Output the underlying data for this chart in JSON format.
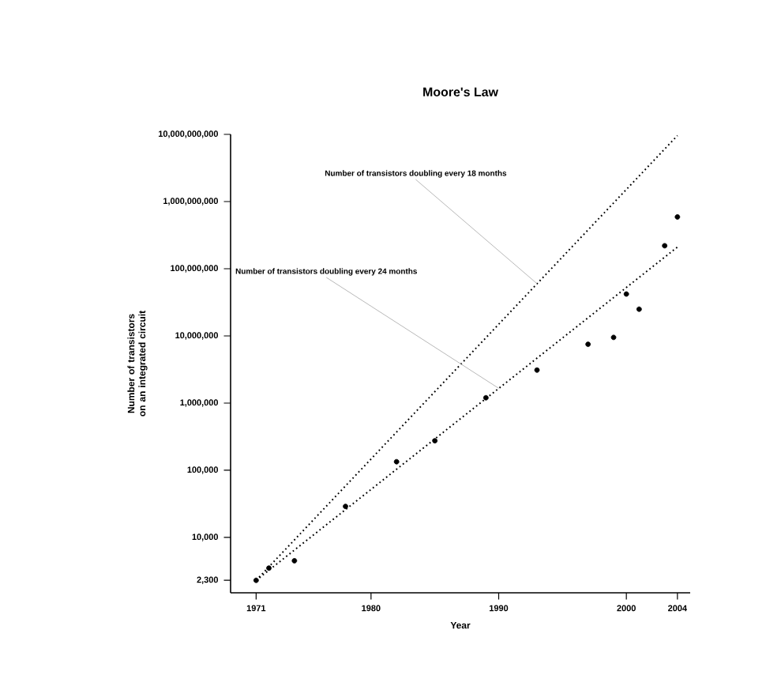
{
  "chart_data": {
    "type": "scatter",
    "title": "Moore's Law",
    "xlabel": "Year",
    "ylabel": "Number of transistors on an integrated circuit",
    "log": "y",
    "grid": false,
    "xlim": [
      1969,
      2005
    ],
    "xticks": [
      1971,
      1980,
      1990,
      2000,
      2004
    ],
    "ylim": [
      1500,
      10000000000
    ],
    "yticks": [
      {
        "value": 2300,
        "label": "2,300"
      },
      {
        "value": 10000,
        "label": "10,000"
      },
      {
        "value": 100000,
        "label": "100,000"
      },
      {
        "value": 1000000,
        "label": "1,000,000"
      },
      {
        "value": 10000000,
        "label": "10,000,000"
      },
      {
        "value": 100000000,
        "label": "100,000,000"
      },
      {
        "value": 1000000000,
        "label": "1,000,000,000"
      },
      {
        "value": 10000000000,
        "label": "10,000,000,000"
      }
    ],
    "series": [
      {
        "color": "#000000",
        "marker": "circle",
        "x": [
          1971,
          1972,
          1974,
          1978,
          1982,
          1985,
          1989,
          1993,
          1997,
          1999,
          2000,
          2001,
          2003,
          2004
        ],
        "values": [
          2300,
          3500,
          4500,
          29000,
          134000,
          275000,
          1200000,
          3100000,
          7500000,
          9500000,
          42000000,
          25000000,
          220000000,
          590000000
        ]
      },
      {
        "type": "line",
        "color": "#000000",
        "line_style": "dotted",
        "marker": "none",
        "x": [
          1971,
          2004
        ],
        "values": [
          2300,
          9600000000
        ]
      },
      {
        "type": "line",
        "color": "#000000",
        "line_style": "dotted",
        "marker": "none",
        "x": [
          1971,
          2004
        ],
        "values": [
          2300,
          210000000
        ]
      }
    ],
    "annotations": [
      {
        "text": "Number of transistors doubling every 18 months",
        "x": 1993,
        "y": 60000000
      },
      {
        "text": "Number of transistors doubling every 24 months",
        "x": 1990,
        "y": 1660000
      }
    ]
  }
}
